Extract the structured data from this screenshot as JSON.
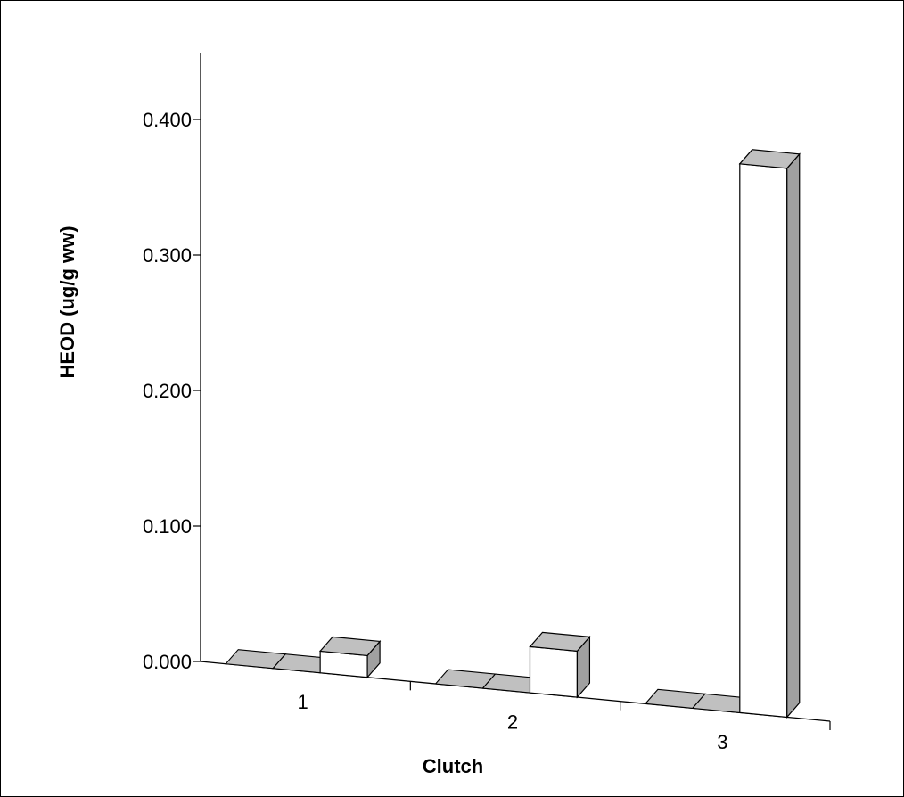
{
  "chart_data": {
    "type": "bar",
    "style": "3d",
    "title": "",
    "xlabel": "Clutch",
    "ylabel": "HEOD (ug/g ww)",
    "ylim": [
      0,
      0.45
    ],
    "y_ticks": [
      "0.000",
      "0.100",
      "0.200",
      "0.300",
      "0.400"
    ],
    "categories": [
      "1",
      "2",
      "3"
    ],
    "series": [
      {
        "values": [
          0.0,
          0.0,
          0.0
        ],
        "color": "#c0c0c0"
      },
      {
        "values": [
          0.0,
          0.0,
          0.0
        ],
        "color": "#c0c0c0"
      },
      {
        "values": [
          0.016,
          0.034,
          0.405
        ],
        "color": "#ffffff"
      }
    ],
    "grid": false,
    "legend": "none",
    "colors": {
      "bar_side": "#a0a0a0",
      "axis": "#000000"
    }
  }
}
